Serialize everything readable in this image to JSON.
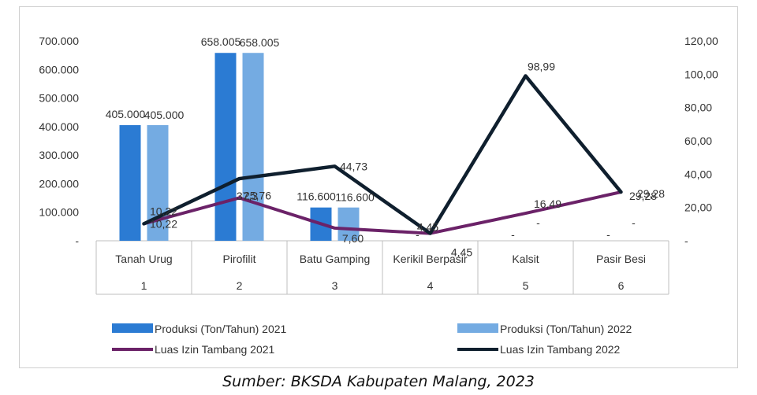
{
  "chart_data": {
    "type": "bar",
    "categories": [
      "Tanah Urug",
      "Pirofilit",
      "Batu Gamping",
      "Kerikil Berpasir",
      "Kalsit",
      "Pasir Besi"
    ],
    "category_numbers": [
      "1",
      "2",
      "3",
      "4",
      "5",
      "6"
    ],
    "series": [
      {
        "name": "Produksi (Ton/Tahun) 2021",
        "kind": "bar",
        "axis": "left",
        "color": "#2b7bd3",
        "values": [
          405000,
          658005,
          116600,
          0,
          0,
          0
        ],
        "labels": [
          "405.000",
          "658.005",
          "116.600",
          "-",
          "-",
          "-"
        ]
      },
      {
        "name": "Produksi (Ton/Tahun) 2022",
        "kind": "bar",
        "axis": "left",
        "color": "#74abe2",
        "values": [
          405000,
          658005,
          116600,
          0,
          0,
          0
        ],
        "labels": [
          "405.000",
          "658.005",
          "116.600",
          "",
          "-",
          "-"
        ]
      },
      {
        "name": "Luas Izin Tambang 2021",
        "kind": "line",
        "axis": "right",
        "color": "#6b2268",
        "values": [
          10.22,
          25.76,
          7.6,
          4.45,
          16.49,
          29.28
        ],
        "labels": [
          "10,22",
          "25,76",
          "7,60",
          "4,45",
          "16,49",
          "29,28"
        ]
      },
      {
        "name": "Luas Izin Tambang 2022",
        "kind": "line",
        "axis": "right",
        "color": "#0f1f2e",
        "values": [
          10.22,
          37.3,
          44.73,
          4.45,
          98.99,
          29.28
        ],
        "labels": [
          "10,22",
          "37,3",
          "44,73",
          "4,45",
          "98,99",
          "29,28"
        ]
      }
    ],
    "left_axis": {
      "min": 0,
      "max": 700000,
      "ticks": [
        "-",
        "100.000",
        "200.000",
        "300.000",
        "400.000",
        "500.000",
        "600.000",
        "700.000"
      ]
    },
    "right_axis": {
      "min": 0,
      "max": 120,
      "ticks": [
        "-",
        "20,00",
        "40,00",
        "60,00",
        "80,00",
        "100,00",
        "120,00"
      ]
    },
    "legend_position": "bottom",
    "title": ""
  },
  "source_text": "Sumber: BKSDA Kabupaten Malang, 2023"
}
